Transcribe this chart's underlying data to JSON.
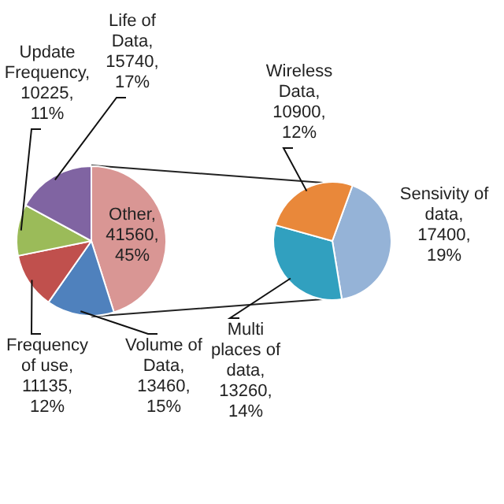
{
  "chart_data": [
    {
      "type": "pie",
      "categories": [
        "Other",
        "Volume of Data",
        "Frequency of use",
        "Update Frequency",
        "Life of Data"
      ],
      "values": [
        41560,
        13460,
        11135,
        10225,
        15740
      ],
      "value_labels": [
        ", 41560, 45%",
        ", 13460, 15%",
        ", 11135, 12%",
        ", 10225, 11%",
        ", 15740, 17%"
      ],
      "colors": [
        "#d99694",
        "#4f81bd",
        "#c0504d",
        "#9bbb59",
        "#8064a2"
      ]
    },
    {
      "type": "pie",
      "categories": [
        "Sensivity of data",
        "Multi places of data",
        "Wireless Data"
      ],
      "values": [
        17400,
        13260,
        10900
      ],
      "value_labels": [
        ", 17400, 19%",
        ", 13260, 14%",
        ", 10900, 12%"
      ],
      "colors": [
        "#95b3d7",
        "#31a0bf",
        "#e9883a"
      ]
    }
  ]
}
